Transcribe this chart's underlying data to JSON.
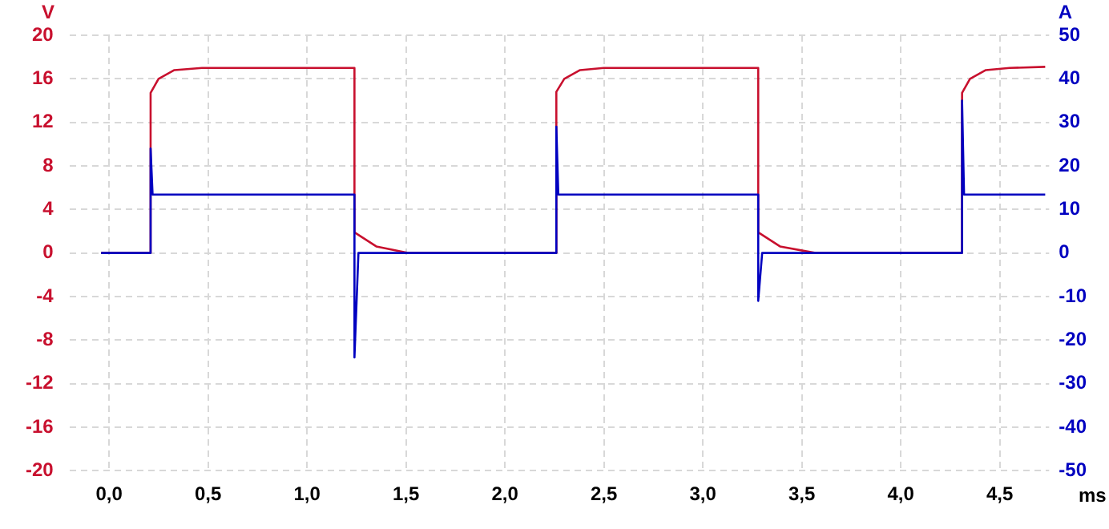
{
  "chart_data": {
    "type": "line",
    "xlabel": "ms",
    "ylabel": "V",
    "y2label": "A",
    "xlim": [
      -0.2,
      4.75
    ],
    "xticks": [
      {
        "value": 0,
        "label": "0,0"
      },
      {
        "value": 0.5,
        "label": "0,5"
      },
      {
        "value": 1,
        "label": "1,0"
      },
      {
        "value": 1.5,
        "label": "1,5"
      },
      {
        "value": 2,
        "label": "2,0"
      },
      {
        "value": 2.5,
        "label": "2,5"
      },
      {
        "value": 3,
        "label": "3,0"
      },
      {
        "value": 3.5,
        "label": "3,5"
      },
      {
        "value": 4,
        "label": "4,0"
      },
      {
        "value": 4.5,
        "label": "4,5"
      }
    ],
    "ylim": [
      -20,
      20
    ],
    "yticks": [
      -20,
      -16,
      -12,
      -8,
      -4,
      0,
      4,
      8,
      12,
      16,
      20
    ],
    "y2lim": [
      -50,
      50
    ],
    "y2ticks": [
      -50,
      -40,
      -30,
      -20,
      -10,
      0,
      10,
      20,
      30,
      40,
      50
    ],
    "grid": true,
    "legend": false,
    "marker": "none",
    "line_style": "solid",
    "series": [
      {
        "color": "#c8102e",
        "x": [
          -0.04,
          0.21,
          0.21,
          0.25,
          0.33,
          0.47,
          1.24,
          1.24,
          1.35,
          1.51,
          2.26,
          2.26,
          2.3,
          2.38,
          2.5,
          3.28,
          3.28,
          3.39,
          3.57,
          4.31,
          4.31,
          4.35,
          4.43,
          4.55,
          4.73
        ],
        "values": [
          0,
          0,
          14.7,
          16,
          16.8,
          17,
          17,
          1.9,
          0.6,
          0,
          0,
          14.8,
          16,
          16.8,
          17,
          17,
          1.9,
          0.6,
          0,
          0,
          14.7,
          16,
          16.8,
          17,
          17.1
        ]
      },
      {
        "color": "#0000c0",
        "axis": "y2",
        "x": [
          -0.04,
          0.21,
          0.21,
          0.22,
          1.24,
          1.24,
          1.26,
          2.26,
          2.26,
          2.27,
          3.28,
          3.28,
          3.3,
          4.31,
          4.31,
          4.32,
          4.73
        ],
        "values": [
          0,
          0,
          24,
          13.4,
          13.4,
          -24,
          0,
          0,
          29,
          13.4,
          13.4,
          -11,
          0,
          0,
          35,
          13.4,
          13.4
        ]
      }
    ]
  }
}
